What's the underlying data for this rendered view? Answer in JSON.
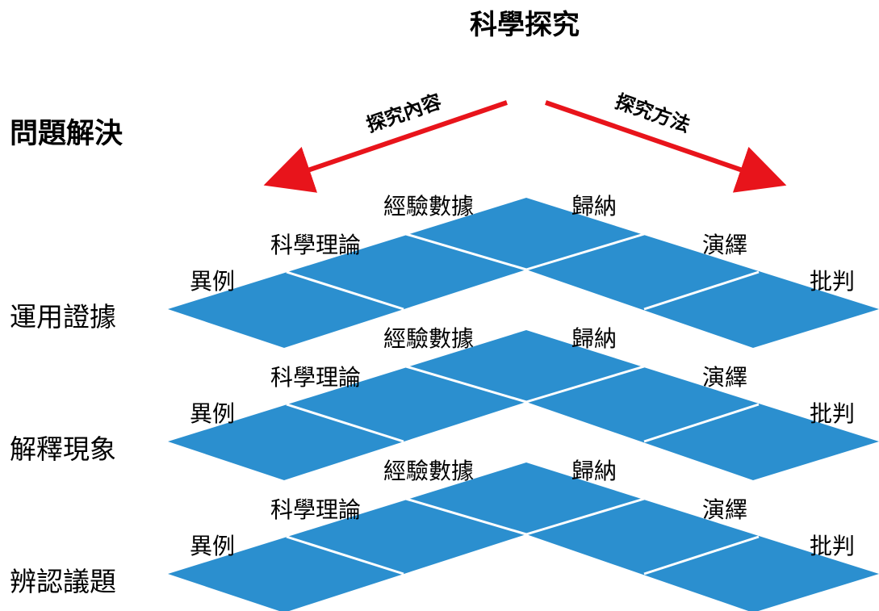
{
  "top_title": "科學探究",
  "left_title": "問題解決",
  "arrows": {
    "left": "探究內容",
    "right": "探究方法"
  },
  "layers": [
    {
      "label": "運用證據",
      "cells": [
        "異例",
        "科學理論",
        "經驗數據",
        "歸納",
        "演繹",
        "批判"
      ]
    },
    {
      "label": "解釋現象",
      "cells": [
        "異例",
        "科學理論",
        "經驗數據",
        "歸納",
        "演繹",
        "批判"
      ]
    },
    {
      "label": "辨認議題",
      "cells": [
        "異例",
        "科學理論",
        "經驗數據",
        "歸納",
        "演繹",
        "批判"
      ]
    }
  ],
  "colors": {
    "tile": "#2b8fcf",
    "arrow": "#e8141b",
    "seam": "#ffffff"
  }
}
